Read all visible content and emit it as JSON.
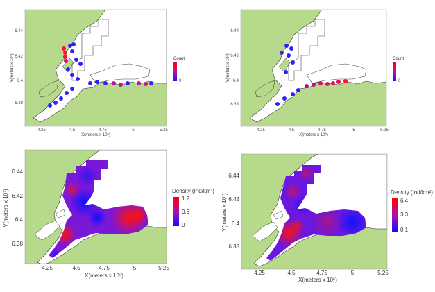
{
  "colors": {
    "land": "#b7d98b",
    "water": "#ffffff",
    "coast": "#333333",
    "low": "#2020ff",
    "high": "#ff1010"
  },
  "panels": [
    {
      "id": "count-1",
      "x_ticks": [
        "4.25",
        "4.5",
        "4.75",
        "5",
        "5.25"
      ],
      "y_ticks": [
        "6.44",
        "6.42",
        "6.4",
        "6.38"
      ],
      "x_label": "X(meters x 10⁶)",
      "y_label": "Y(meters x 10⁷)",
      "legend_title": "Count",
      "legend_ticks": [
        "",
        "",
        "",
        "0"
      ]
    },
    {
      "id": "count-2",
      "x_ticks": [
        "4.25",
        "4.5",
        "4.75",
        "5",
        "5.25"
      ],
      "y_ticks": [
        "6.44",
        "6.42",
        "6.4",
        "6.38"
      ],
      "x_label": "X(meters x 10⁶)",
      "y_label": "Y(meters x 10⁷)",
      "legend_title": "Count",
      "legend_ticks": [
        "",
        "",
        "",
        "0"
      ]
    },
    {
      "id": "density-1",
      "x_ticks": [
        "4.25",
        "4.5",
        "4.75",
        "5",
        "5.25"
      ],
      "y_ticks": [
        "6.44",
        "6.42",
        "6.4",
        "6.38"
      ],
      "x_label": "X(meters x 10⁶)",
      "y_label": "Y(meters x 10⁷)",
      "legend_title": "Density (Ind/km²)",
      "legend_ticks": [
        "1.2",
        "0.6",
        "0"
      ]
    },
    {
      "id": "density-2",
      "x_ticks": [
        "4.25",
        "4.5",
        "4.75",
        "5",
        "5.25"
      ],
      "y_ticks": [
        "6.44",
        "6.42",
        "6.4",
        "6.38"
      ],
      "x_label": "X(meters x 10⁶)",
      "y_label": "Y(meters x 10⁷)",
      "legend_title": "Density (Ind/km²)",
      "legend_ticks": [
        "6.4",
        "3.3",
        "0.1"
      ]
    }
  ]
}
